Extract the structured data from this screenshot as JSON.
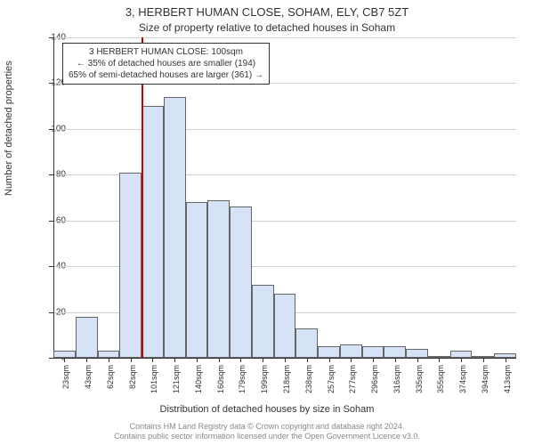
{
  "title_line1": "3, HERBERT HUMAN CLOSE, SOHAM, ELY, CB7 5ZT",
  "title_line2": "Size of property relative to detached houses in Soham",
  "y_axis_label": "Number of detached properties",
  "x_axis_label": "Distribution of detached houses by size in Soham",
  "footer_line1": "Contains HM Land Registry data © Crown copyright and database right 2024.",
  "footer_line2": "Contains public sector information licensed under the Open Government Licence v3.0.",
  "annotation": {
    "line1": "3 HERBERT HUMAN CLOSE: 100sqm",
    "line2": "← 35% of detached houses are smaller (194)",
    "line3": "65% of semi-detached houses are larger (361) →"
  },
  "chart": {
    "type": "histogram",
    "ylim": [
      0,
      140
    ],
    "ytick_step": 20,
    "yticks": [
      0,
      20,
      40,
      60,
      80,
      100,
      120,
      140
    ],
    "xlabels": [
      "23sqm",
      "43sqm",
      "62sqm",
      "82sqm",
      "101sqm",
      "121sqm",
      "140sqm",
      "160sqm",
      "179sqm",
      "199sqm",
      "218sqm",
      "238sqm",
      "257sqm",
      "277sqm",
      "296sqm",
      "316sqm",
      "335sqm",
      "355sqm",
      "374sqm",
      "394sqm",
      "413sqm"
    ],
    "values": [
      3,
      18,
      3,
      81,
      110,
      114,
      68,
      69,
      66,
      32,
      28,
      13,
      5,
      6,
      5,
      5,
      4,
      0,
      3,
      0,
      2
    ],
    "bar_fill": "#d6e2f5",
    "bar_stroke": "#666666",
    "grid_color": "#d0d0d0",
    "marker_color": "#cc0000",
    "marker_bar_index": 4,
    "background": "#ffffff",
    "title_fontsize": 13,
    "subtitle_fontsize": 12,
    "axis_label_fontsize": 11,
    "tick_fontsize": 10
  }
}
